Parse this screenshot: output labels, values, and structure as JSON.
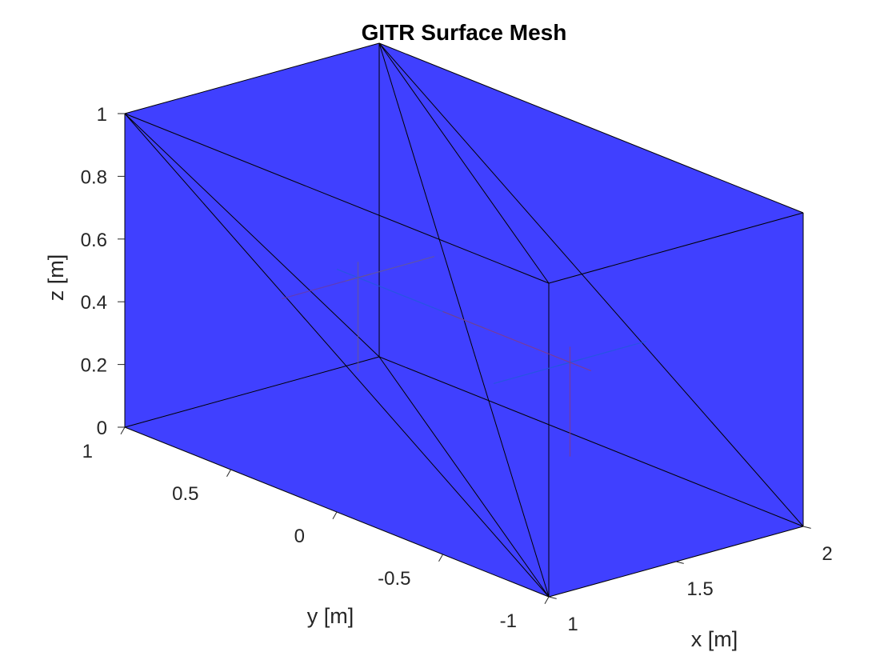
{
  "chart_data": {
    "type": "surface-mesh-3d",
    "title": "GITR Surface Mesh",
    "xlabel": "x [m]",
    "ylabel": "y [m]",
    "zlabel": "z [m]",
    "xlim": [
      1,
      2
    ],
    "ylim": [
      -1,
      1
    ],
    "zlim": [
      0,
      1
    ],
    "x_ticks": [
      1,
      1.5,
      2
    ],
    "y_ticks": [
      -1,
      -0.5,
      0,
      0.5,
      1
    ],
    "z_ticks": [
      0,
      0.2,
      0.4,
      0.6,
      0.8,
      1
    ],
    "x_tick_labels": [
      "1",
      "1.5",
      "2"
    ],
    "y_tick_labels": [
      "-1",
      "-0.5",
      "0",
      "0.5",
      "1"
    ],
    "z_tick_labels": [
      "0",
      "0.2",
      "0.4",
      "0.6",
      "0.8",
      "1"
    ],
    "face_color": "#4040ff",
    "edge_color": "#000000",
    "box": {
      "x": [
        1,
        2
      ],
      "y": [
        -1,
        1
      ],
      "z": [
        0,
        1
      ]
    },
    "triangulated_faces": 6,
    "normal_arrow_colors": [
      "#6b3aa0",
      "#1f5bd9",
      "#8a3a7a",
      "#6a5a8a"
    ]
  }
}
